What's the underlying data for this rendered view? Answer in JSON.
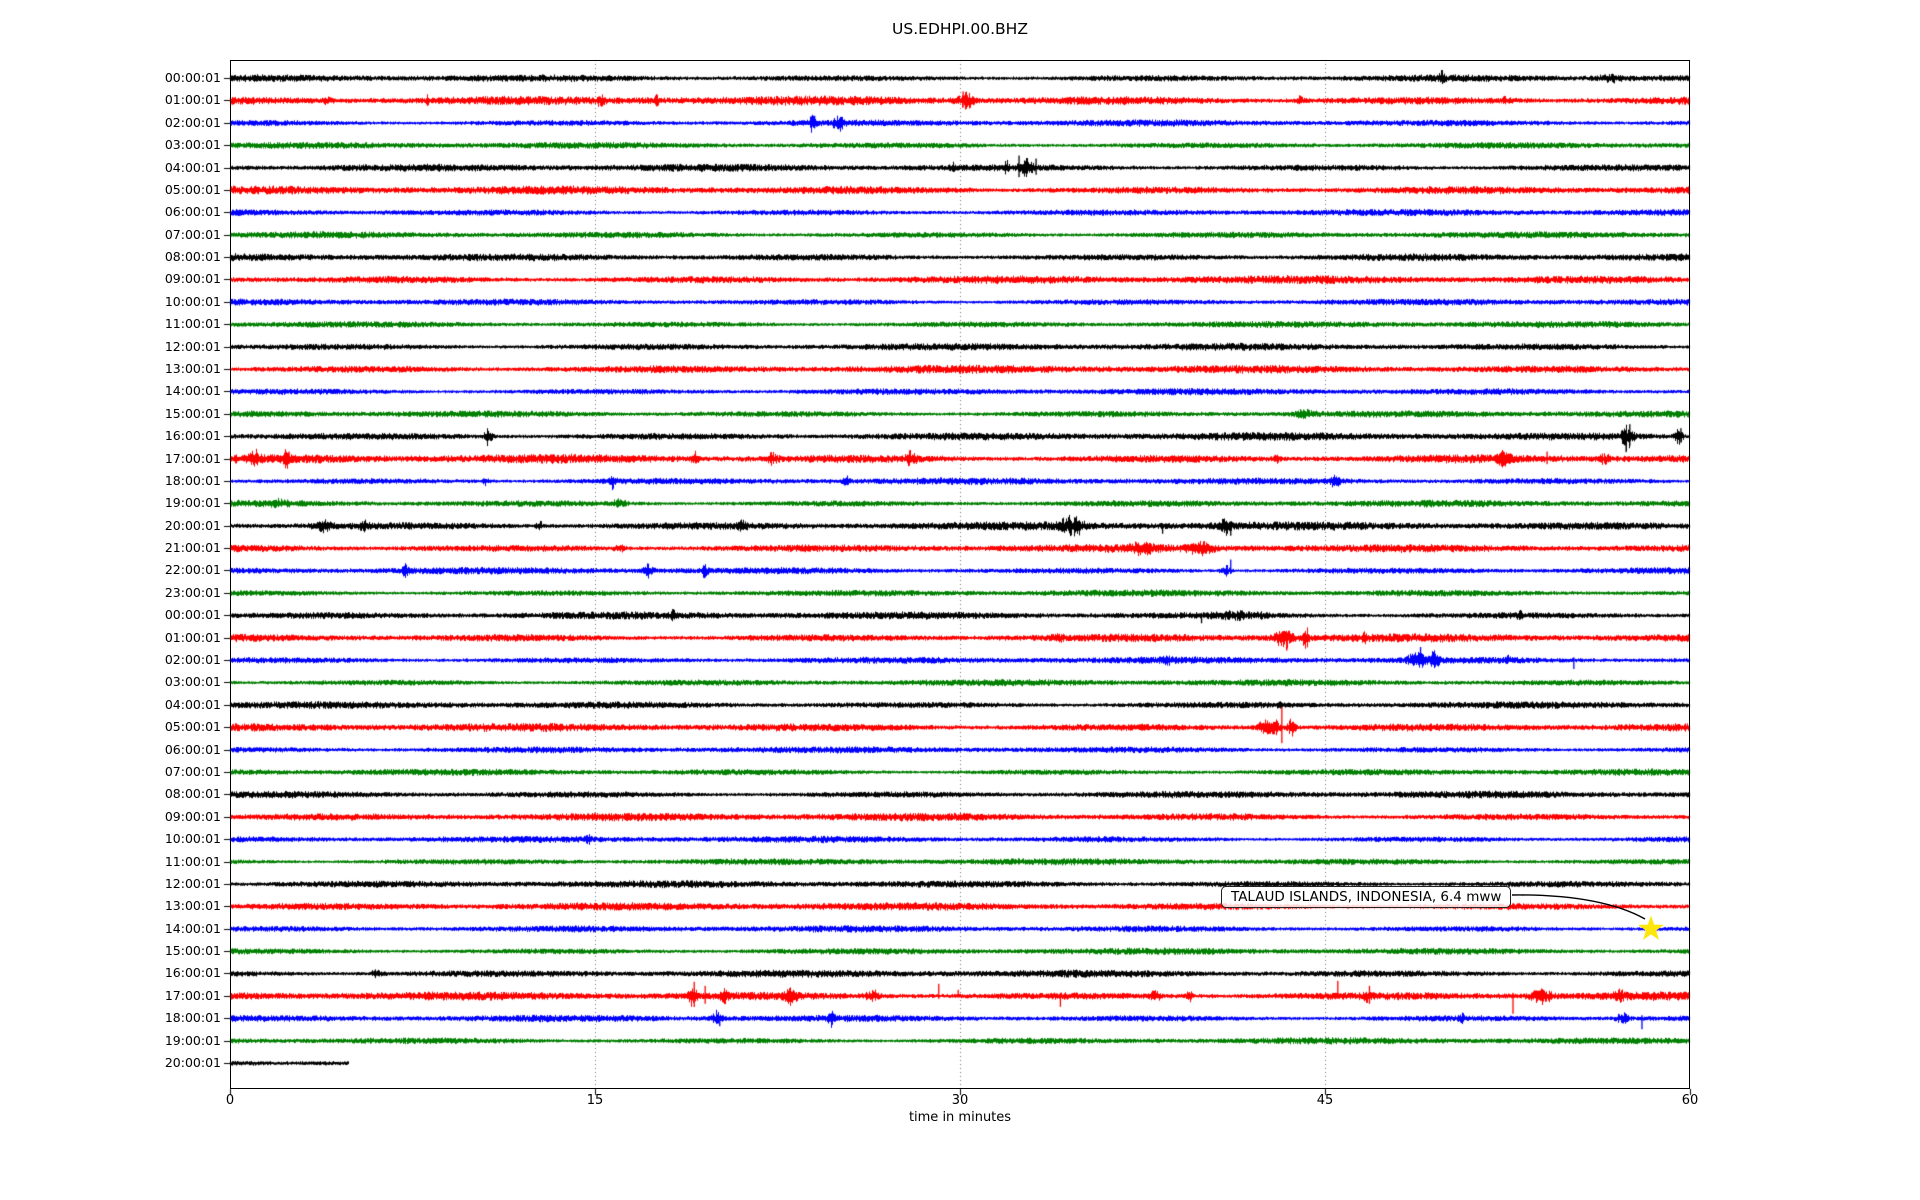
{
  "window": {
    "title": "US.EDHPI.00.BHZ"
  },
  "chart_data": {
    "type": "line",
    "subtype": "seismogram-dayplot",
    "title": "US.EDHPI.00.BHZ",
    "station_code": "US.EDHPI.00.BHZ",
    "xlabel": "time in minutes",
    "x_ticks": [
      0,
      15,
      30,
      45,
      60
    ],
    "x_range_minutes": [
      0,
      60
    ],
    "grid_lines_minutes": [
      15,
      30,
      45
    ],
    "grid_style": "dotted",
    "legend": "none",
    "color_cycle": [
      "#000000",
      "#ff0000",
      "#0000ff",
      "#008000"
    ],
    "annotation": {
      "text": "TALAUD ISLANDS, INDONESIA, 6.4 mww",
      "target_row_label": "14:00:01",
      "target_row_index": 38,
      "target_minute": 58.4,
      "marker": "star",
      "marker_color": "#ffe60a"
    },
    "rows": [
      {
        "label": "00:00:01",
        "color": "#000000",
        "amp": 2.5,
        "events": [
          [
            49.8,
            0.15,
            5,
            "b"
          ],
          [
            56.8,
            0.8,
            2.5,
            "b"
          ]
        ]
      },
      {
        "label": "01:00:01",
        "color": "#ff0000",
        "amp": 3.2,
        "events": [
          [
            4,
            0.3,
            2.5,
            "b"
          ],
          [
            8.1,
            0.12,
            4,
            "b"
          ],
          [
            15.2,
            0.2,
            3.5,
            "b"
          ],
          [
            17.5,
            0.2,
            3,
            "b"
          ],
          [
            30.2,
            0.5,
            7,
            "b"
          ],
          [
            30.1,
            0,
            9,
            "u"
          ],
          [
            44,
            0.3,
            2.5,
            "b"
          ],
          [
            52.4,
            0.3,
            2.5,
            "b"
          ]
        ]
      },
      {
        "label": "02:00:01",
        "color": "#0000ff",
        "amp": 2.3,
        "events": [
          [
            23.9,
            0.2,
            6,
            "b"
          ],
          [
            24,
            0,
            7,
            "u"
          ],
          [
            25,
            0.3,
            5,
            "b"
          ],
          [
            25.1,
            0,
            6,
            "u"
          ]
        ]
      },
      {
        "label": "03:00:01",
        "color": "#008000",
        "amp": 2.3,
        "events": []
      },
      {
        "label": "04:00:01",
        "color": "#000000",
        "amp": 2.6,
        "events": [
          [
            29.7,
            0.12,
            4,
            "b"
          ],
          [
            31.9,
            0.1,
            4,
            "b"
          ],
          [
            32.4,
            0,
            12,
            "u"
          ],
          [
            32.7,
            0.4,
            6,
            "b"
          ],
          [
            33.1,
            0,
            9,
            "u"
          ]
        ]
      },
      {
        "label": "05:00:01",
        "color": "#ff0000",
        "amp": 3.0,
        "events": []
      },
      {
        "label": "06:00:01",
        "color": "#0000ff",
        "amp": 2.3,
        "events": []
      },
      {
        "label": "07:00:01",
        "color": "#008000",
        "amp": 2.3,
        "events": []
      },
      {
        "label": "08:00:01",
        "color": "#000000",
        "amp": 2.6,
        "events": []
      },
      {
        "label": "09:00:01",
        "color": "#ff0000",
        "amp": 2.9,
        "events": []
      },
      {
        "label": "10:00:01",
        "color": "#0000ff",
        "amp": 2.3,
        "events": []
      },
      {
        "label": "11:00:01",
        "color": "#008000",
        "amp": 2.3,
        "events": []
      },
      {
        "label": "12:00:01",
        "color": "#000000",
        "amp": 2.5,
        "events": []
      },
      {
        "label": "13:00:01",
        "color": "#ff0000",
        "amp": 2.9,
        "events": []
      },
      {
        "label": "14:00:01",
        "color": "#0000ff",
        "amp": 2.3,
        "events": []
      },
      {
        "label": "15:00:01",
        "color": "#008000",
        "amp": 2.4,
        "events": [
          [
            44.1,
            0.6,
            2.5,
            "b"
          ]
        ]
      },
      {
        "label": "16:00:01",
        "color": "#000000",
        "amp": 2.8,
        "events": [
          [
            10.6,
            0.25,
            6,
            "b"
          ],
          [
            57.4,
            0.35,
            9,
            "b"
          ],
          [
            57.35,
            0,
            16,
            "d"
          ],
          [
            57.5,
            0,
            12,
            "u"
          ],
          [
            59.5,
            0.25,
            6,
            "b"
          ],
          [
            59.6,
            0,
            8,
            "u"
          ]
        ]
      },
      {
        "label": "17:00:01",
        "color": "#ff0000",
        "amp": 3.2,
        "events": [
          [
            1,
            0.3,
            4.5,
            "b"
          ],
          [
            2.3,
            0.2,
            5.5,
            "b"
          ],
          [
            2.4,
            0,
            7,
            "u"
          ],
          [
            19.1,
            0.2,
            3.5,
            "b"
          ],
          [
            22.3,
            0.3,
            4.5,
            "b"
          ],
          [
            28,
            0.3,
            5,
            "b"
          ],
          [
            43,
            0.2,
            3.5,
            "b"
          ],
          [
            52.3,
            0.4,
            4.5,
            "b"
          ],
          [
            54.1,
            0,
            7,
            "u"
          ],
          [
            56.5,
            0.3,
            3.5,
            "b"
          ]
        ]
      },
      {
        "label": "18:00:01",
        "color": "#0000ff",
        "amp": 2.4,
        "events": [
          [
            10.5,
            0.2,
            3,
            "b"
          ],
          [
            15.7,
            0.2,
            5,
            "b"
          ],
          [
            25.3,
            0.2,
            5,
            "b"
          ],
          [
            45.4,
            0.3,
            4,
            "b"
          ]
        ]
      },
      {
        "label": "19:00:01",
        "color": "#008000",
        "amp": 2.4,
        "events": [
          [
            2,
            0.5,
            2,
            "b"
          ],
          [
            16,
            0.4,
            2.5,
            "b"
          ]
        ]
      },
      {
        "label": "20:00:01",
        "color": "#000000",
        "amp": 3.0,
        "events": [
          [
            3.8,
            0.6,
            4.5,
            "b"
          ],
          [
            5.5,
            0.3,
            3.5,
            "b"
          ],
          [
            12.7,
            0.2,
            4,
            "b"
          ],
          [
            21,
            0.3,
            2.5,
            "b"
          ],
          [
            34.6,
            0.7,
            6.5,
            "b"
          ],
          [
            38.3,
            0,
            8,
            "d"
          ],
          [
            40.9,
            0.3,
            5,
            "b"
          ],
          [
            41.1,
            0,
            10,
            "d"
          ]
        ]
      },
      {
        "label": "21:00:01",
        "color": "#ff0000",
        "amp": 2.9,
        "events": [
          [
            16,
            0.3,
            3.5,
            "b"
          ],
          [
            37.5,
            0.7,
            3.5,
            "b"
          ],
          [
            39.9,
            0.8,
            4,
            "b"
          ]
        ]
      },
      {
        "label": "22:00:01",
        "color": "#0000ff",
        "amp": 2.4,
        "events": [
          [
            7.2,
            0.2,
            4,
            "b"
          ],
          [
            17.2,
            0.3,
            5.5,
            "b"
          ],
          [
            19.5,
            0.2,
            4,
            "b"
          ],
          [
            40.9,
            0.3,
            5,
            "b"
          ],
          [
            41.1,
            0,
            11,
            "s"
          ]
        ]
      },
      {
        "label": "23:00:01",
        "color": "#008000",
        "amp": 2.3,
        "events": []
      },
      {
        "label": "00:00:01",
        "color": "#000000",
        "amp": 2.6,
        "events": [
          [
            18.2,
            0.12,
            5,
            "b"
          ],
          [
            39.9,
            0,
            8,
            "d"
          ],
          [
            41.5,
            1.5,
            2,
            "b"
          ],
          [
            53,
            0.15,
            3,
            "b"
          ]
        ]
      },
      {
        "label": "01:00:01",
        "color": "#ff0000",
        "amp": 2.9,
        "events": [
          [
            34,
            0.3,
            2.5,
            "b"
          ],
          [
            43.3,
            0.6,
            7,
            "b"
          ],
          [
            43.4,
            0,
            13,
            "d"
          ],
          [
            44.2,
            0.2,
            8,
            "b"
          ],
          [
            46.6,
            0.12,
            4.5,
            "b"
          ]
        ]
      },
      {
        "label": "02:00:01",
        "color": "#0000ff",
        "amp": 2.4,
        "events": [
          [
            38.5,
            0.3,
            2.5,
            "b"
          ],
          [
            48.8,
            0.6,
            6,
            "b"
          ],
          [
            48.9,
            0,
            13,
            "s"
          ],
          [
            49.5,
            0.25,
            7,
            "b"
          ],
          [
            52.5,
            0.12,
            4,
            "b"
          ],
          [
            55.2,
            0,
            9,
            "d"
          ]
        ]
      },
      {
        "label": "03:00:01",
        "color": "#008000",
        "amp": 2.3,
        "events": []
      },
      {
        "label": "04:00:01",
        "color": "#000000",
        "amp": 2.5,
        "events": [
          [
            43.1,
            0.06,
            2.5,
            "b"
          ]
        ]
      },
      {
        "label": "05:00:01",
        "color": "#ff0000",
        "amp": 2.9,
        "events": [
          [
            42.7,
            0.7,
            7,
            "b"
          ],
          [
            43.2,
            0,
            20,
            "u"
          ],
          [
            43.6,
            0.25,
            7,
            "b"
          ]
        ]
      },
      {
        "label": "06:00:01",
        "color": "#0000ff",
        "amp": 2.3,
        "events": []
      },
      {
        "label": "07:00:01",
        "color": "#008000",
        "amp": 2.3,
        "events": []
      },
      {
        "label": "08:00:01",
        "color": "#000000",
        "amp": 2.5,
        "events": []
      },
      {
        "label": "09:00:01",
        "color": "#ff0000",
        "amp": 2.8,
        "events": []
      },
      {
        "label": "10:00:01",
        "color": "#0000ff",
        "amp": 2.3,
        "events": [
          [
            14.7,
            0.2,
            2.5,
            "b"
          ]
        ]
      },
      {
        "label": "11:00:01",
        "color": "#008000",
        "amp": 2.3,
        "events": []
      },
      {
        "label": "12:00:01",
        "color": "#000000",
        "amp": 2.5,
        "events": []
      },
      {
        "label": "13:00:01",
        "color": "#ff0000",
        "amp": 2.8,
        "events": []
      },
      {
        "label": "14:00:01",
        "color": "#0000ff",
        "amp": 2.3,
        "events": []
      },
      {
        "label": "15:00:01",
        "color": "#008000",
        "amp": 2.3,
        "events": []
      },
      {
        "label": "16:00:01",
        "color": "#000000",
        "amp": 2.6,
        "events": [
          [
            6,
            0.3,
            2.5,
            "b"
          ]
        ]
      },
      {
        "label": "17:00:01",
        "color": "#ff0000",
        "amp": 3.0,
        "events": [
          [
            19,
            0.25,
            7,
            "b"
          ],
          [
            19.05,
            0,
            14,
            "u"
          ],
          [
            19.5,
            0,
            10,
            "u"
          ],
          [
            20.3,
            0.3,
            4.5,
            "b"
          ],
          [
            23,
            0.4,
            5.5,
            "b"
          ],
          [
            26.4,
            0.4,
            3.5,
            "b"
          ],
          [
            29.1,
            0,
            12,
            "s"
          ],
          [
            29.9,
            0,
            6,
            "s"
          ],
          [
            34.1,
            0,
            11,
            "d"
          ],
          [
            38,
            0.3,
            4.5,
            "b"
          ],
          [
            39.4,
            0.2,
            4.5,
            "b"
          ],
          [
            45.5,
            0,
            15,
            "s"
          ],
          [
            46.7,
            0.15,
            5,
            "b"
          ],
          [
            46.8,
            0,
            10,
            "u"
          ],
          [
            52.7,
            0,
            18,
            "d"
          ],
          [
            53.9,
            0.6,
            5.5,
            "b"
          ],
          [
            57.1,
            0.3,
            3.5,
            "b"
          ]
        ]
      },
      {
        "label": "18:00:01",
        "color": "#0000ff",
        "amp": 2.4,
        "events": [
          [
            20,
            0.3,
            5.5,
            "b"
          ],
          [
            20.1,
            0,
            8,
            "d"
          ],
          [
            24.7,
            0.2,
            5.5,
            "b"
          ],
          [
            50.6,
            0.2,
            3.5,
            "b"
          ],
          [
            57.2,
            0.4,
            4.5,
            "b"
          ],
          [
            58,
            0,
            11,
            "d"
          ]
        ]
      },
      {
        "label": "19:00:01",
        "color": "#008000",
        "amp": 2.3,
        "events": []
      },
      {
        "label": "20:00:01",
        "color": "#000000",
        "amp": 3.0,
        "end_minute": 4.85,
        "events": []
      }
    ]
  }
}
